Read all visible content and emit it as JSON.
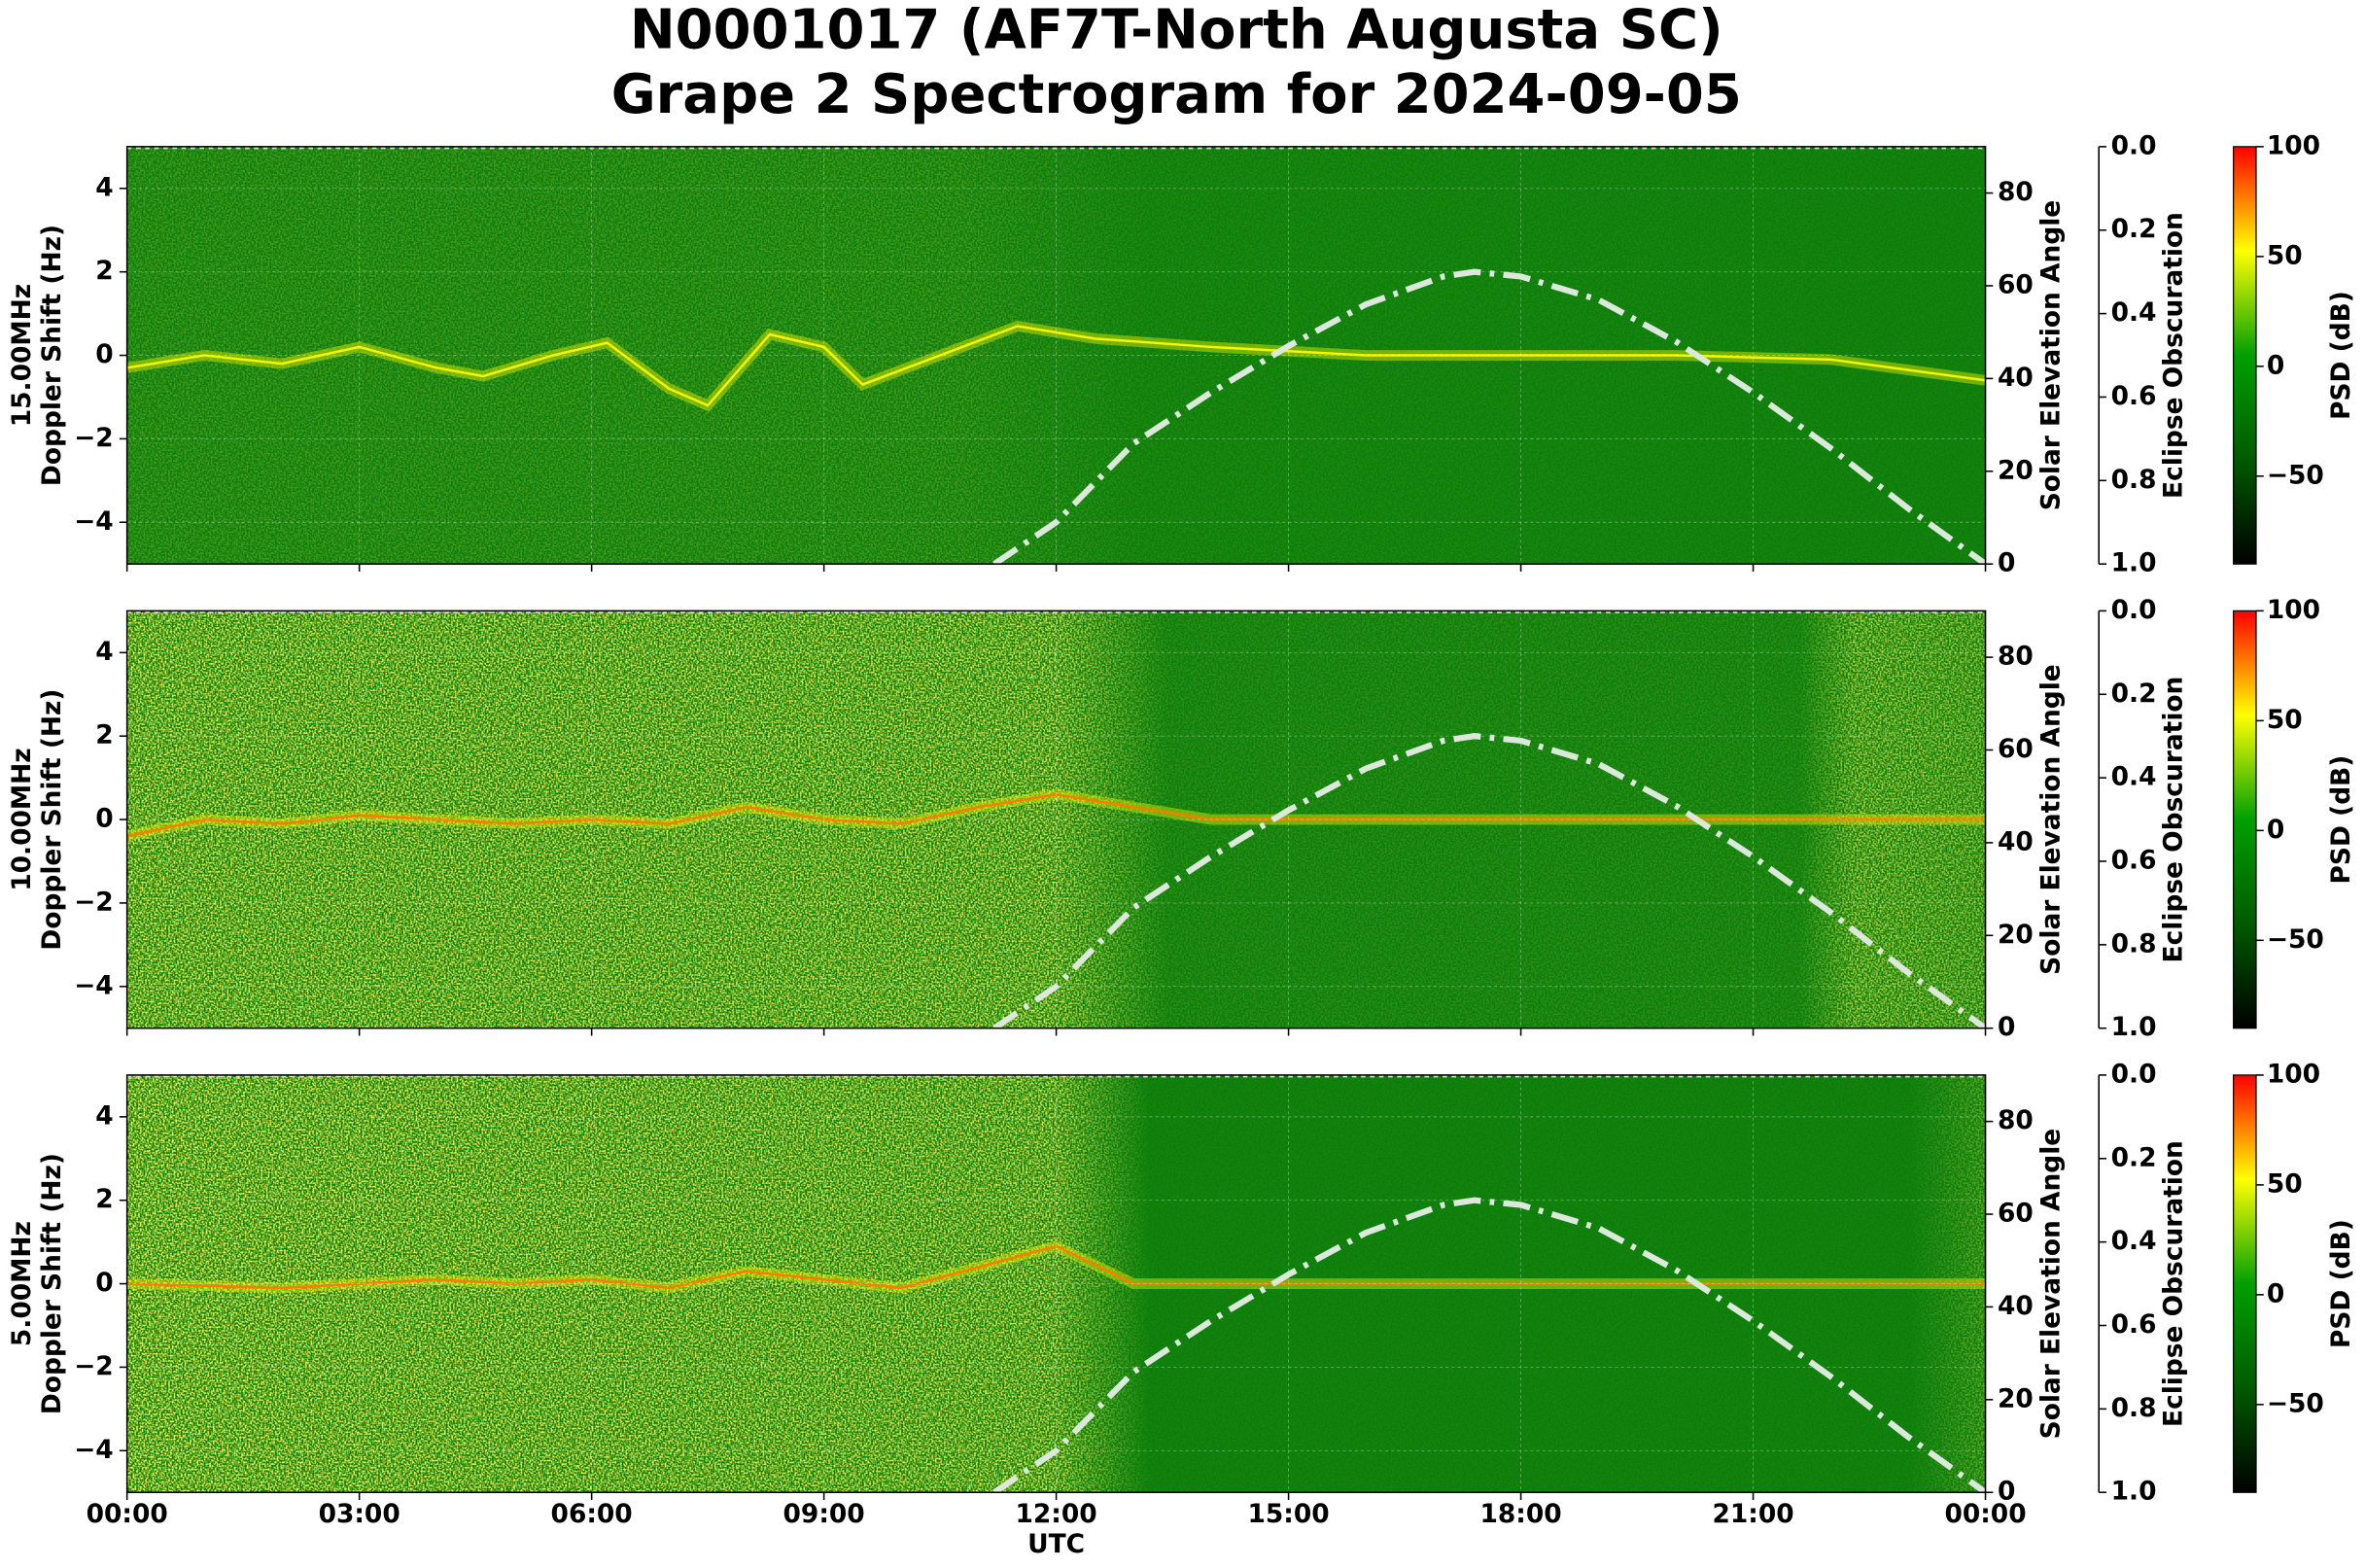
{
  "chart_data": {
    "type": "spectrogram",
    "title": [
      "N0001017 (AF7T-North Augusta SC)",
      "Grape 2 Spectrogram for 2024-09-05"
    ],
    "xlabel": "UTC",
    "xlim": [
      0,
      24
    ],
    "xticks": [
      {
        "value": 0,
        "label": "00:00"
      },
      {
        "value": 3,
        "label": "03:00"
      },
      {
        "value": 6,
        "label": "06:00"
      },
      {
        "value": 9,
        "label": "09:00"
      },
      {
        "value": 12,
        "label": "12:00"
      },
      {
        "value": 15,
        "label": "15:00"
      },
      {
        "value": 18,
        "label": "18:00"
      },
      {
        "value": 21,
        "label": "21:00"
      },
      {
        "value": 24,
        "label": "00:00"
      }
    ],
    "ylim": [
      -5,
      5
    ],
    "yticks": [
      {
        "value": -4,
        "label": "−4"
      },
      {
        "value": -2,
        "label": "−2"
      },
      0,
      2,
      4
    ],
    "y2label": "Solar Elevation Angle",
    "y2lim": [
      0,
      90
    ],
    "y2ticks": [
      0,
      20,
      40,
      60,
      80
    ],
    "y3label": "Eclipse Obscuration",
    "y3lim": [
      1,
      0
    ],
    "y3ticks": [
      {
        "value": 0,
        "label": "0.0"
      },
      {
        "value": 0.2,
        "label": "0.2"
      },
      {
        "value": 0.4,
        "label": "0.4"
      },
      {
        "value": 0.6,
        "label": "0.6"
      },
      {
        "value": 0.8,
        "label": "0.8"
      },
      {
        "value": 1,
        "label": "1.0"
      }
    ],
    "colorbar": {
      "label": "PSD (dB)",
      "lim": [
        -90,
        100
      ],
      "ticks": [
        {
          "value": -50,
          "label": "−50"
        },
        0,
        50,
        100
      ],
      "colors": [
        "#000000",
        "#005a00",
        "#00a000",
        "#ffff00",
        "#ff0000"
      ]
    },
    "grid": true,
    "panels": [
      {
        "ylabel": [
          "15.00MHz",
          "Doppler Shift (Hz)"
        ]
      },
      {
        "ylabel": [
          "10.00MHz",
          "Doppler Shift (Hz)"
        ]
      },
      {
        "ylabel": [
          "5.00MHz",
          "Doppler Shift (Hz)"
        ]
      }
    ],
    "series": [
      {
        "color": "#dbe8db",
        "axis": "y2",
        "x": [
          11.2,
          12,
          13,
          14,
          15,
          16,
          17,
          17.4,
          18,
          19,
          20,
          21,
          22,
          23,
          24
        ],
        "values": [
          0,
          9,
          26,
          37,
          47,
          56,
          62,
          63,
          62,
          57,
          48,
          37,
          25,
          12,
          0
        ]
      }
    ]
  }
}
